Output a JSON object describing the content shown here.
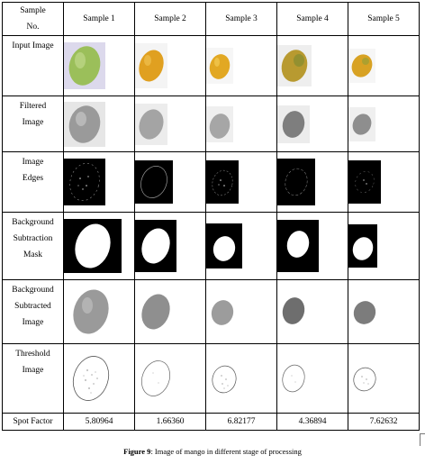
{
  "table": {
    "header": {
      "first": [
        "Sample",
        "No."
      ],
      "samples": [
        "Sample 1",
        "Sample 2",
        "Sample 3",
        "Sample 4",
        "Sample 5"
      ]
    },
    "rows": [
      {
        "key": "input",
        "label": [
          "Input Image"
        ]
      },
      {
        "key": "filtered",
        "label": [
          "Filtered",
          "Image"
        ]
      },
      {
        "key": "edges",
        "label": [
          "Image",
          "Edges"
        ]
      },
      {
        "key": "mask",
        "label": [
          "Background",
          "Subtraction",
          "Mask"
        ]
      },
      {
        "key": "subtracted",
        "label": [
          "Background",
          "Subtracted",
          "Image"
        ]
      },
      {
        "key": "threshold",
        "label": [
          "Threshold",
          "Image"
        ]
      }
    ],
    "spot_factor": {
      "label": "Spot Factor",
      "values": [
        "5.80964",
        "1.66360",
        "6.82177",
        "4.36894",
        "7.62632"
      ]
    }
  },
  "caption": {
    "prefix": "Figure 9",
    "text": ": Image of mango in different stage of processing"
  },
  "colors": {
    "mango_green": "#9bbf5a",
    "mango_orange": "#e0a020",
    "mango_mixed": "#b89a30",
    "background_lavender": "#dcd9ec"
  }
}
